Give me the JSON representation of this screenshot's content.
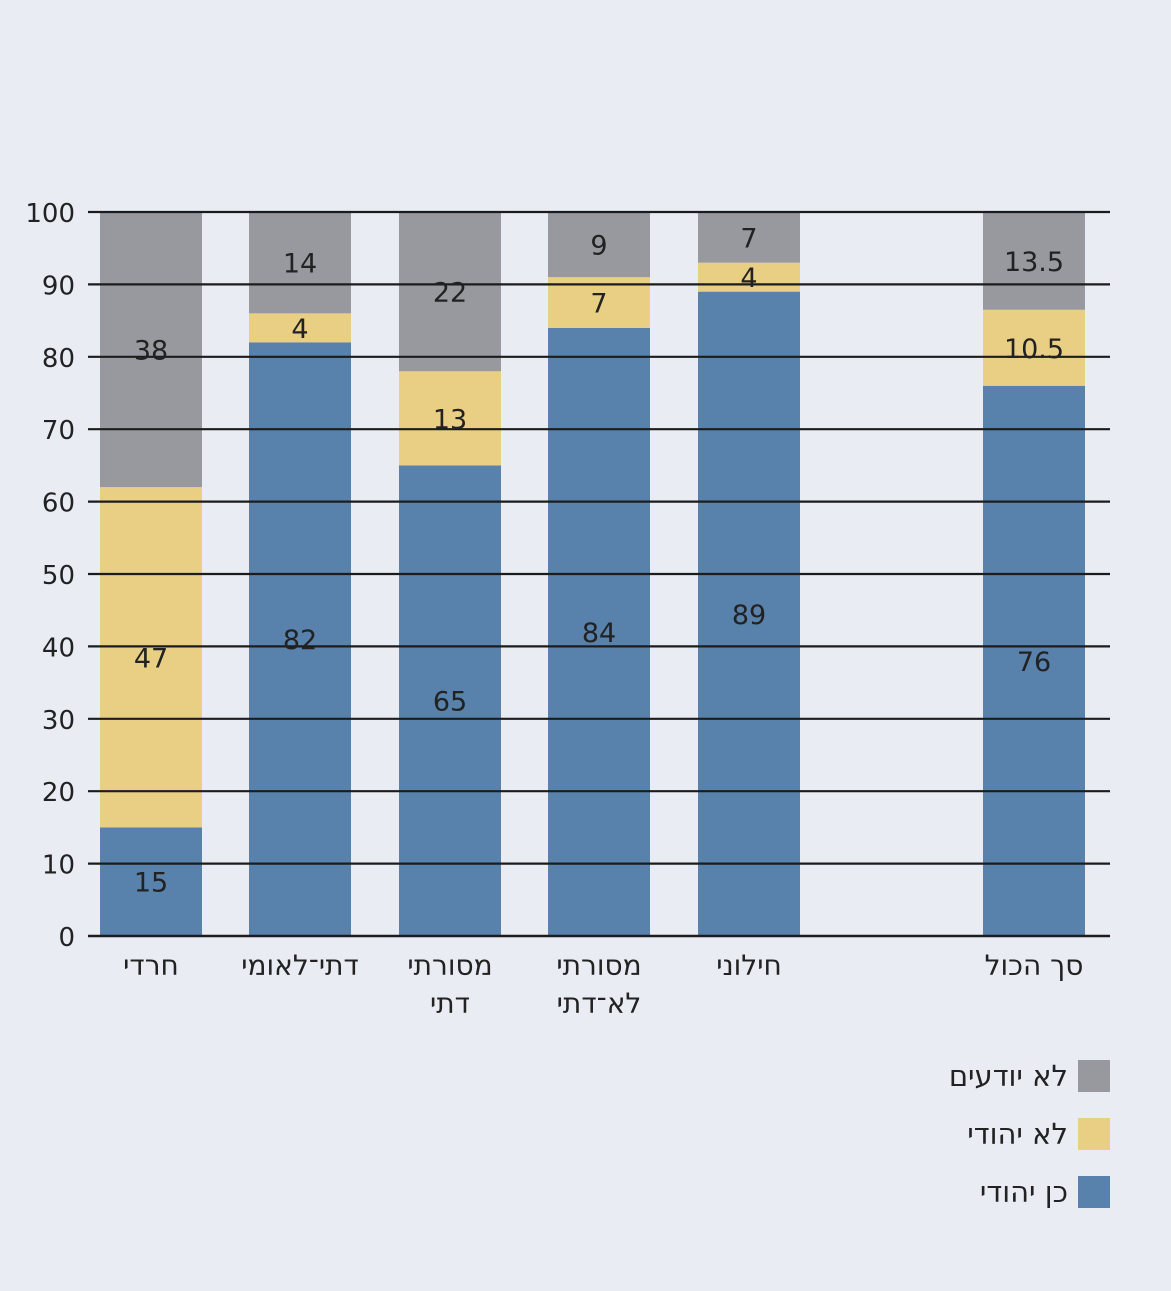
{
  "chart_data": {
    "type": "bar",
    "stacked": true,
    "categories": [
      [
        "חרדי"
      ],
      [
        "דתי־לאומי"
      ],
      [
        "מסורתי",
        "דתי"
      ],
      [
        "מסורתי",
        "לא־דתי"
      ],
      [
        "חילוני"
      ],
      [
        "סך הכול"
      ]
    ],
    "series": [
      {
        "name": "כן יהודי",
        "color": "#5882ab",
        "values": [
          15,
          82,
          65,
          84,
          89,
          76
        ],
        "labels": [
          "15",
          "82",
          "65",
          "84",
          "89",
          "76"
        ]
      },
      {
        "name": "לא יהודי",
        "color": "#e8cf84",
        "values": [
          47,
          4,
          13,
          7,
          4,
          10.5
        ],
        "labels": [
          "47",
          "4",
          "13",
          "7",
          "4",
          "10.5"
        ]
      },
      {
        "name": "לא יודעים",
        "color": "#98999e",
        "values": [
          38,
          14,
          22,
          9,
          7,
          13.5
        ],
        "labels": [
          "38",
          "14",
          "22",
          "9",
          "7",
          "13.5"
        ]
      }
    ],
    "ylim": [
      0,
      100
    ],
    "yticks": [
      "0",
      "10",
      "20",
      "30",
      "40",
      "50",
      "60",
      "70",
      "80",
      "90",
      "100"
    ],
    "grid": true,
    "legend_position": "bottom-right"
  },
  "legend": [
    {
      "label": "לא יודעים",
      "color": "#98999e"
    },
    {
      "label": "לא יהודי",
      "color": "#e8cf84"
    },
    {
      "label": "כן יהודי",
      "color": "#5882ab"
    }
  ]
}
